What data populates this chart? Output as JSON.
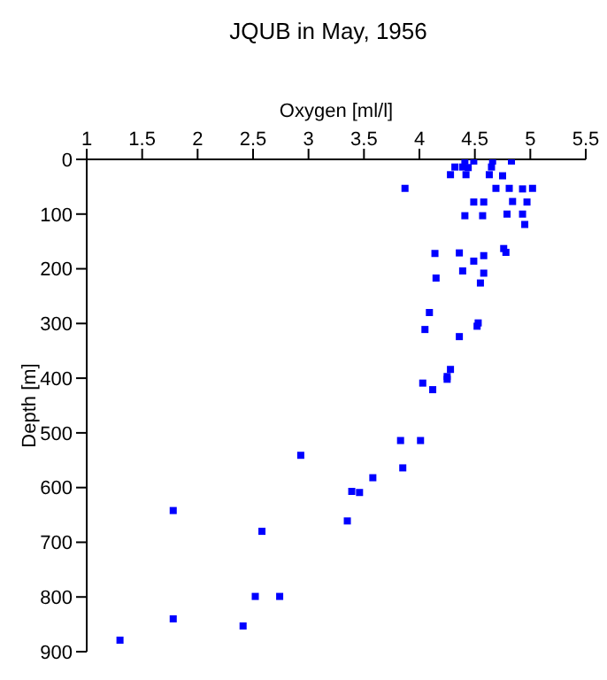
{
  "chart_data": {
    "type": "scatter",
    "title": "JQUB in May, 1956",
    "xlabel": "Oxygen [ml/l]",
    "ylabel": "Depth [m]",
    "xlim": [
      1,
      5.5
    ],
    "xticks": [
      1,
      1.5,
      2,
      2.5,
      3,
      3.5,
      4,
      4.5,
      5,
      5.5
    ],
    "ylim": [
      900,
      0
    ],
    "yticks": [
      0,
      100,
      200,
      300,
      400,
      500,
      600,
      700,
      800,
      900
    ],
    "grid": false,
    "marker": "square",
    "series": [
      {
        "color": "#0000ff",
        "x": [
          4.41,
          4.49,
          4.66,
          4.83,
          4.32,
          4.39,
          4.44,
          4.65,
          4.28,
          4.42,
          4.63,
          4.75,
          3.87,
          4.69,
          4.81,
          4.93,
          5.02,
          4.49,
          4.58,
          4.84,
          4.97,
          4.41,
          4.57,
          4.79,
          4.93,
          4.95,
          4.76,
          4.78,
          4.14,
          4.36,
          4.58,
          4.49,
          4.39,
          4.58,
          4.15,
          4.55,
          4.09,
          4.53,
          4.52,
          4.05,
          4.36,
          4.28,
          4.25,
          4.25,
          4.03,
          4.12,
          3.83,
          4.01,
          2.93,
          1.78,
          2.58,
          3.35,
          3.39,
          3.46,
          3.58,
          3.85,
          2.52,
          2.74,
          1.78,
          2.41,
          1.3
        ],
        "values": [
          3,
          3,
          3,
          3,
          14,
          14,
          15,
          14,
          28,
          28,
          28,
          30,
          53,
          53,
          53,
          54,
          53,
          78,
          78,
          77,
          78,
          103,
          103,
          100,
          100,
          119,
          163,
          170,
          172,
          171,
          176,
          186,
          204,
          208,
          217,
          226,
          280,
          299,
          305,
          311,
          324,
          384,
          397,
          402,
          409,
          421,
          514,
          514,
          541,
          642,
          680,
          661,
          607,
          609,
          582,
          564,
          799,
          799,
          840,
          853,
          879
        ]
      }
    ]
  }
}
